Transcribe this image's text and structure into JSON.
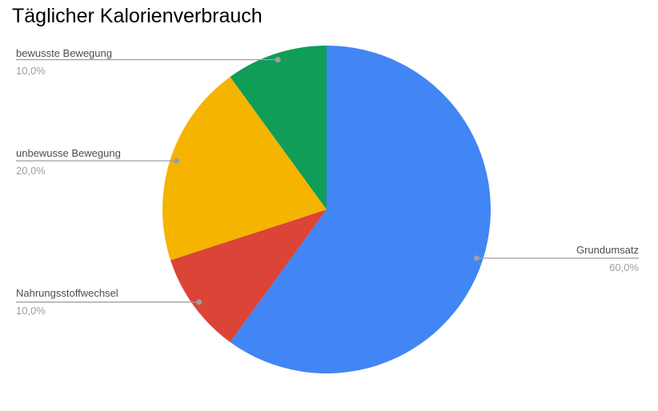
{
  "title": "Täglicher Kalorienverbrauch",
  "colors": {
    "background": "#ffffff",
    "title_text": "#000000",
    "label_text": "#4d4d4d",
    "percent_text": "#9e9e9e",
    "leader_line": "#9e9e9e"
  },
  "chart_data": {
    "type": "pie",
    "title": "Täglicher Kalorienverbrauch",
    "start_angle_deg": 0,
    "direction": "clockwise",
    "legend_position": "outside-labels-with-leader-lines",
    "categories": [
      "Grundumsatz",
      "Nahrungsstoffwechsel",
      "unbewusse Bewegung",
      "bewusste Bewegung"
    ],
    "values": [
      60.0,
      10.0,
      20.0,
      10.0
    ],
    "slices": [
      {
        "label": "Grundumsatz",
        "value_pct": 60.0,
        "display_value": "60,0%",
        "color": "#4285f4",
        "label_side": "right"
      },
      {
        "label": "Nahrungsstoffwechsel",
        "value_pct": 10.0,
        "display_value": "10,0%",
        "color": "#db4437",
        "label_side": "left"
      },
      {
        "label": "unbewusse Bewegung",
        "value_pct": 20.0,
        "display_value": "20,0%",
        "color": "#f4b400",
        "label_side": "left"
      },
      {
        "label": "bewusste Bewegung",
        "value_pct": 10.0,
        "display_value": "10,0%",
        "color": "#0f9d58",
        "label_side": "left"
      }
    ]
  }
}
